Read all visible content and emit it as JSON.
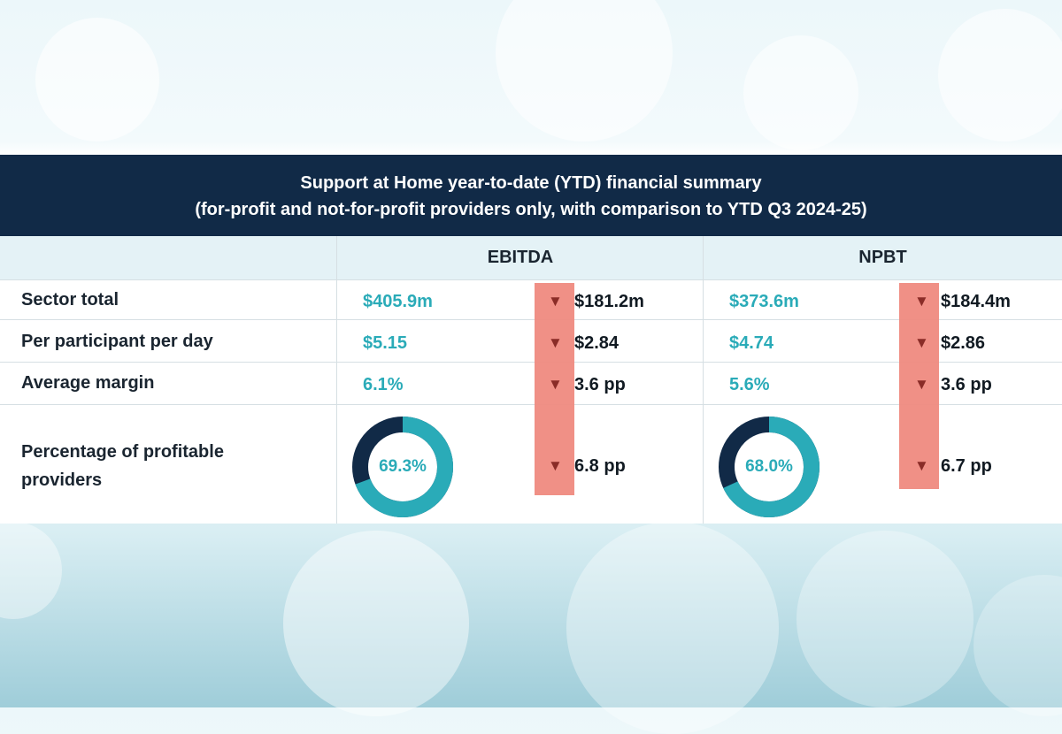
{
  "title": {
    "line1": "Support at Home year-to-date (YTD) financial summary",
    "line2": "(for-profit and not-for-profit providers only, with comparison to YTD Q3 2024-25)"
  },
  "columns": [
    "EBITDA",
    "NPBT"
  ],
  "rows": [
    {
      "label": "Sector total",
      "ebitda": {
        "value": "$405.9m",
        "change": "$181.2m"
      },
      "npbt": {
        "value": "$373.6m",
        "change": "$184.4m"
      }
    },
    {
      "label": "Per participant per day",
      "ebitda": {
        "value": "$5.15",
        "change": "$2.84"
      },
      "npbt": {
        "value": "$4.74",
        "change": "$2.86"
      }
    },
    {
      "label": "Average margin",
      "ebitda": {
        "value": "6.1%",
        "change": "3.6 pp"
      },
      "npbt": {
        "value": "5.6%",
        "change": "3.6 pp"
      }
    },
    {
      "label_line1": "Percentage of profitable",
      "label_line2": "providers",
      "ebitda": {
        "value": "69.3%",
        "percent": 69.3,
        "change": "6.8 pp"
      },
      "npbt": {
        "value": "68.0%",
        "percent": 68.0,
        "change": "6.7 pp"
      }
    }
  ],
  "arrow_glyph": "▼",
  "colors": {
    "header_bg": "#112a47",
    "teal": "#2aabb8",
    "donut_dark": "#112a47",
    "highlight": "#ef8a80",
    "arrow": "#8a2c27"
  }
}
